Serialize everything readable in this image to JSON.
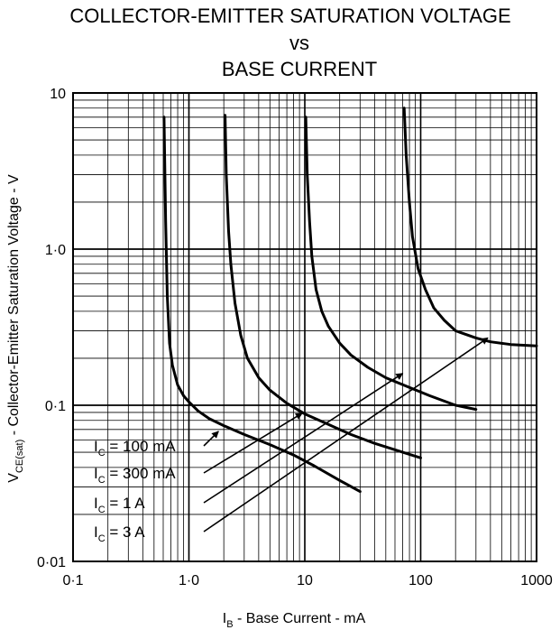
{
  "chart_data": {
    "type": "line",
    "title": [
      "COLLECTOR-EMITTER SATURATION VOLTAGE",
      "vs",
      "BASE CURRENT"
    ],
    "xlabel": {
      "main": "I",
      "sub": "B",
      "rest": " - Base Current - mA"
    },
    "ylabel": {
      "main": "V",
      "sub": "CE(sat)",
      "rest": " - Collector-Emitter Saturation Voltage - V"
    },
    "x_scale": "log",
    "y_scale": "log",
    "xlim": [
      0.1,
      1000
    ],
    "ylim": [
      0.01,
      10
    ],
    "x_tick_values": [
      0.1,
      1,
      10,
      100,
      1000
    ],
    "x_tick_labels": [
      "0·1",
      "1·0",
      "10",
      "100",
      "1000"
    ],
    "y_tick_values": [
      0.01,
      0.1,
      1,
      10
    ],
    "y_tick_labels": [
      "0·01",
      "0·1",
      "1·0",
      "10"
    ],
    "grid": true,
    "legend_position": "bottom-left",
    "series": [
      {
        "name": {
          "main": "I",
          "sub": "C",
          "rest": " = 100 mA"
        },
        "x": [
          0.61,
          0.63,
          0.65,
          0.68,
          0.72,
          0.8,
          0.9,
          1.0,
          1.2,
          1.5,
          2.0,
          3.0,
          5.0,
          8.0,
          12.0,
          20.0,
          30.0
        ],
        "y": [
          7.0,
          1.5,
          0.5,
          0.25,
          0.18,
          0.135,
          0.115,
          0.105,
          0.092,
          0.082,
          0.074,
          0.065,
          0.056,
          0.048,
          0.041,
          0.033,
          0.028
        ]
      },
      {
        "name": {
          "main": "I",
          "sub": "C",
          "rest": " = 300 mA"
        },
        "x": [
          2.05,
          2.1,
          2.2,
          2.3,
          2.5,
          2.8,
          3.2,
          4.0,
          5.0,
          7.0,
          10.0,
          15.0,
          25.0,
          40.0,
          70.0,
          100.0
        ],
        "y": [
          7.2,
          3.0,
          1.3,
          0.8,
          0.45,
          0.28,
          0.2,
          0.15,
          0.125,
          0.103,
          0.088,
          0.077,
          0.065,
          0.057,
          0.05,
          0.046
        ]
      },
      {
        "name": {
          "main": "I",
          "sub": "C",
          "rest": " = 1 A"
        },
        "x": [
          10.2,
          10.5,
          11.0,
          11.5,
          12.5,
          14.0,
          16.0,
          20.0,
          25.0,
          35.0,
          50.0,
          80.0,
          120.0,
          200.0,
          300.0
        ],
        "y": [
          7.0,
          3.0,
          1.5,
          0.9,
          0.55,
          0.4,
          0.32,
          0.25,
          0.21,
          0.175,
          0.15,
          0.13,
          0.115,
          0.1,
          0.094
        ]
      },
      {
        "name": {
          "main": "I",
          "sub": "C",
          "rest": " = 3 A"
        },
        "x": [
          72.0,
          75.0,
          80.0,
          85.0,
          95.0,
          110.0,
          130.0,
          160.0,
          200.0,
          300.0,
          400.0,
          600.0,
          1000.0
        ],
        "y": [
          8.0,
          4.0,
          2.0,
          1.2,
          0.75,
          0.55,
          0.42,
          0.35,
          0.3,
          0.27,
          0.255,
          0.245,
          0.24
        ]
      }
    ]
  }
}
